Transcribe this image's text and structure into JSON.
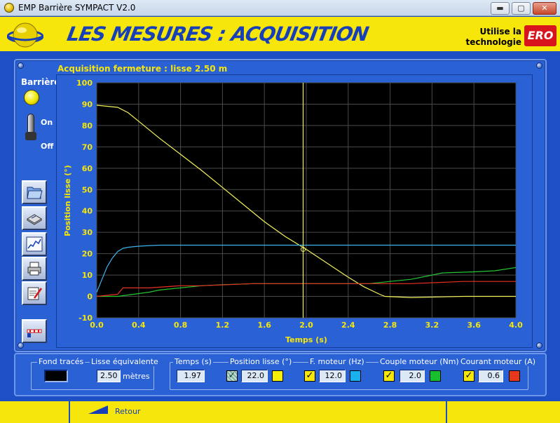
{
  "window": {
    "title": "EMP Barrière SYMPACT V2.0",
    "minimize_glyph": "▬",
    "maximize_glyph": "▢",
    "close_glyph": "✕"
  },
  "header": {
    "title": "LES MESURES : ACQUISITION",
    "uses_line1": "Utilise la",
    "uses_line2": "technologie",
    "logo_text": "ERO"
  },
  "panel": {
    "acquisition_title": "Acquisition fermeture : lisse 2.50 m"
  },
  "controls": {
    "barriere_label": "Barrière",
    "on_label": "On",
    "off_label": "Off",
    "tools": [
      {
        "name": "open-file-icon"
      },
      {
        "name": "save-disk-icon"
      },
      {
        "name": "graph-view-icon"
      },
      {
        "name": "print-icon"
      },
      {
        "name": "report-edit-icon"
      },
      {
        "name": "barrier-exit-icon"
      }
    ]
  },
  "chart_data": {
    "type": "line",
    "xlabel": "Temps (s)",
    "ylabel": "Position lisse (°)",
    "xlim": [
      0,
      4.0
    ],
    "ylim": [
      -10,
      100
    ],
    "x_ticks": [
      "0.0",
      "0.4",
      "0.8",
      "1.2",
      "1.6",
      "2.0",
      "2.4",
      "2.8",
      "3.2",
      "3.6",
      "4.0"
    ],
    "y_ticks": [
      "100",
      "90",
      "80",
      "70",
      "60",
      "50",
      "40",
      "30",
      "20",
      "10",
      "0",
      "-10"
    ],
    "grid": true,
    "cursor_x": 1.97,
    "series": [
      {
        "color": "#f2f25a",
        "x": [
          0,
          0.1,
          0.2,
          0.3,
          0.4,
          0.6,
          0.8,
          1.0,
          1.2,
          1.4,
          1.6,
          1.8,
          2.0,
          2.2,
          2.4,
          2.55,
          2.7,
          2.75,
          3.0,
          3.5,
          4.0
        ],
        "y": [
          89.5,
          89,
          88.5,
          86,
          82,
          74,
          66.5,
          59,
          51,
          43,
          35,
          28,
          22,
          15.5,
          9,
          4.5,
          1,
          0,
          -0.5,
          0,
          0
        ]
      },
      {
        "color": "#3fb3f0",
        "x": [
          0,
          0.05,
          0.1,
          0.15,
          0.2,
          0.25,
          0.3,
          0.4,
          0.5,
          0.6,
          0.8,
          1.0,
          1.5,
          2.0,
          2.5,
          3.0,
          3.5,
          4.0
        ],
        "y": [
          2,
          8,
          14,
          18,
          21,
          22.5,
          23,
          23.5,
          23.8,
          24,
          24,
          24,
          24,
          24,
          24,
          24,
          24,
          24
        ]
      },
      {
        "color": "#22c632",
        "x": [
          0,
          0.2,
          0.35,
          0.5,
          0.6,
          0.8,
          1.0,
          1.2,
          1.5,
          1.8,
          2.0,
          2.3,
          2.6,
          2.7,
          2.8,
          3.0,
          3.2,
          3.3,
          3.6,
          3.8,
          4.0
        ],
        "y": [
          0,
          0,
          1,
          2,
          3,
          4,
          5,
          5.5,
          6,
          6,
          6,
          6,
          6,
          6.5,
          7,
          8,
          10,
          11,
          11.5,
          12,
          13.5
        ]
      },
      {
        "color": "#e83020",
        "x": [
          0,
          0.1,
          0.2,
          0.25,
          0.5,
          0.8,
          1.0,
          1.5,
          2.0,
          2.5,
          3.0,
          3.5,
          4.0
        ],
        "y": [
          0,
          0.5,
          1,
          4,
          4,
          5,
          5,
          6,
          6,
          6,
          6,
          7,
          7
        ]
      }
    ]
  },
  "bottom": {
    "fond_traces_label": "Fond tracés",
    "lisse_label": "Lisse équivalente",
    "lisse_value": "2.50",
    "lisse_unit": "mètres",
    "temps_label": "Temps (s)",
    "temps_value": "1.97",
    "position_label": "Position lisse (°)",
    "position_value": "22.0",
    "fmoteur_label": "F. moteur (Hz)",
    "fmoteur_value": "12.0",
    "couple_label": "Couple moteur (Nm)",
    "couple_value": "2.0",
    "courant_label": "Courant moteur (A)",
    "courant_value": "0.6",
    "check_glyph": "✓",
    "colors": {
      "position": "#f7f000",
      "fmoteur": "#18b0ee",
      "couple": "#18c030",
      "courant": "#e8381c"
    }
  },
  "footer": {
    "back_label": "Retour"
  }
}
